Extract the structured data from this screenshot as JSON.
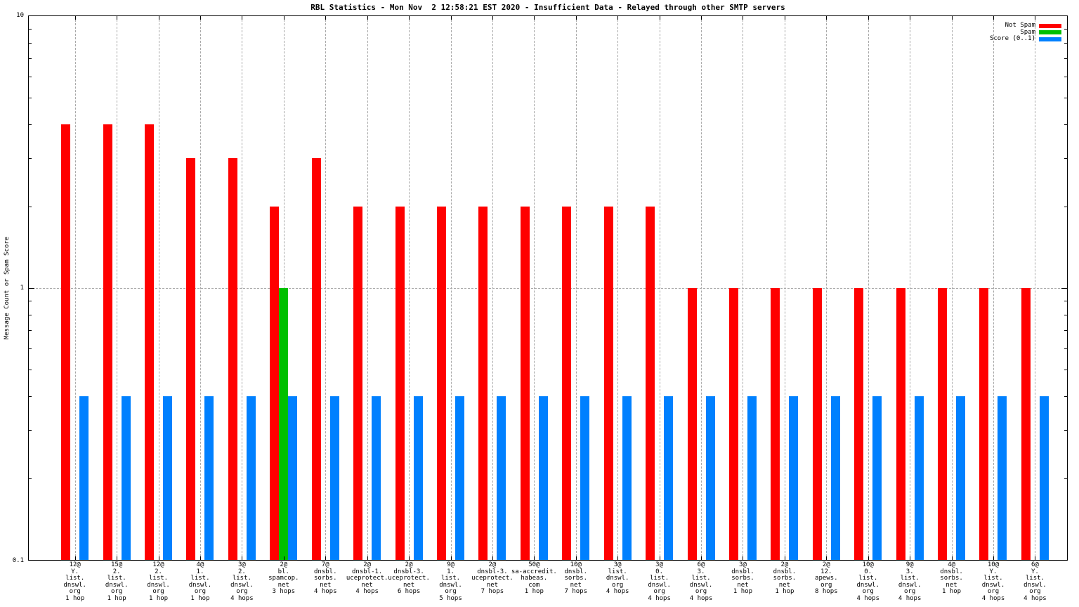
{
  "chart_data": {
    "type": "bar",
    "title": "RBL Statistics - Mon Nov  2 12:58:21 EST 2020 - Insufficient Data - Relayed through other SMTP servers",
    "ylabel": "Message Count or Spam Score",
    "xlabel": "",
    "y_scale": "log",
    "ylim": [
      0.1,
      10
    ],
    "ytick_labels": [
      "10",
      "1",
      "0.1"
    ],
    "minor_ticks": [
      0.2,
      0.3,
      0.4,
      0.5,
      0.6,
      0.7,
      0.8,
      0.9,
      2,
      3,
      4,
      5,
      6,
      7,
      8,
      9
    ],
    "grid": true,
    "legend_position": "top-right",
    "legend": [
      {
        "name": "Not Spam",
        "color": "#ff0000"
      },
      {
        "name": "Spam",
        "color": "#00c000"
      },
      {
        "name": "Score (0..1)",
        "color": "#0080ff"
      }
    ],
    "categories": [
      [
        "12@",
        "Y.",
        "list.",
        "dnswl.",
        "org",
        "1 hop"
      ],
      [
        "15@",
        "2.",
        "list.",
        "dnswl.",
        "org",
        "1 hop"
      ],
      [
        "12@",
        "2.",
        "list.",
        "dnswl.",
        "org",
        "1 hop"
      ],
      [
        "4@",
        "1.",
        "list.",
        "dnswl.",
        "org",
        "1 hop"
      ],
      [
        "3@",
        "2.",
        "list.",
        "dnswl.",
        "org",
        "4 hops"
      ],
      [
        "2@",
        "bl.",
        "spamcop.",
        "net",
        "3 hops"
      ],
      [
        "7@",
        "dnsbl.",
        "sorbs.",
        "net",
        "4 hops"
      ],
      [
        "2@",
        "dnsbl-1.",
        "uceprotect.",
        "net",
        "4 hops"
      ],
      [
        "2@",
        "dnsbl-3.",
        "uceprotect.",
        "net",
        "6 hops"
      ],
      [
        "9@",
        "1.",
        "list.",
        "dnswl.",
        "org",
        "5 hops"
      ],
      [
        "2@",
        "dnsbl-3.",
        "uceprotect.",
        "net",
        "7 hops"
      ],
      [
        "50@",
        "sa-accredit.",
        "habeas.",
        "com",
        "1 hop"
      ],
      [
        "10@",
        "dnsbl.",
        "sorbs.",
        "net",
        "7 hops"
      ],
      [
        "3@",
        "list.",
        "dnswl.",
        "org",
        "4 hops"
      ],
      [
        "3@",
        "0.",
        "list.",
        "dnswl.",
        "org",
        "4 hops"
      ],
      [
        "6@",
        "3.",
        "list.",
        "dnswl.",
        "org",
        "4 hops"
      ],
      [
        "3@",
        "dnsbl.",
        "sorbs.",
        "net",
        "1 hop"
      ],
      [
        "2@",
        "dnsbl.",
        "sorbs.",
        "net",
        "1 hop"
      ],
      [
        "2@",
        "12.",
        "apews.",
        "org",
        "8 hops"
      ],
      [
        "10@",
        "0.",
        "list.",
        "dnswl.",
        "org",
        "4 hops"
      ],
      [
        "9@",
        "3.",
        "list.",
        "dnswl.",
        "org",
        "4 hops"
      ],
      [
        "4@",
        "dnsbl.",
        "sorbs.",
        "net",
        "1 hop"
      ],
      [
        "10@",
        "Y.",
        "list.",
        "dnswl.",
        "org",
        "4 hops"
      ],
      [
        "6@",
        "Y.",
        "list.",
        "dnswl.",
        "org",
        "4 hops"
      ]
    ],
    "series": [
      {
        "name": "Not Spam",
        "color": "#ff0000",
        "values": [
          4,
          4,
          4,
          3,
          3,
          2,
          3,
          2,
          2,
          2,
          2,
          2,
          2,
          2,
          2,
          1,
          1,
          1,
          1,
          1,
          1,
          1,
          1,
          1
        ]
      },
      {
        "name": "Spam",
        "color": "#00c000",
        "values": [
          0,
          0,
          0,
          0,
          0,
          1,
          0,
          0,
          0,
          0,
          0,
          0,
          0,
          0,
          0,
          0,
          0,
          0,
          0,
          0,
          0,
          0,
          0,
          0
        ]
      },
      {
        "name": "Score (0..1)",
        "color": "#0080ff",
        "values": [
          0.4,
          0.4,
          0.4,
          0.4,
          0.4,
          0.4,
          0.4,
          0.4,
          0.4,
          0.4,
          0.4,
          0.4,
          0.4,
          0.4,
          0.4,
          0.4,
          0.4,
          0.4,
          0.4,
          0.4,
          0.4,
          0.4,
          0.4,
          0.4
        ]
      }
    ]
  }
}
